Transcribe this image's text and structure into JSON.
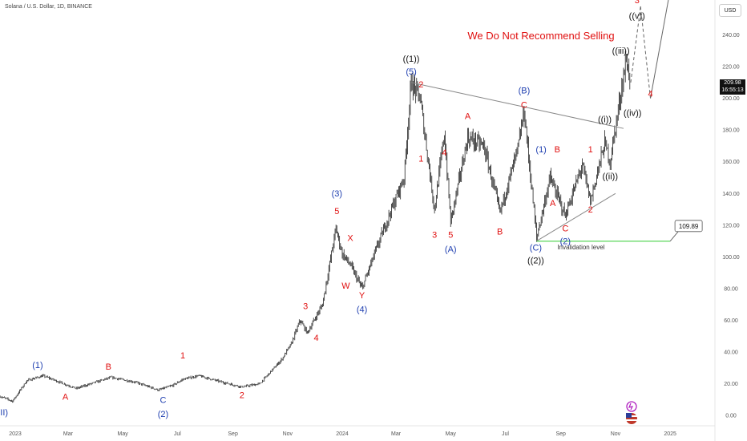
{
  "header": {
    "title": "Solana / U.S. Dollar, 1D, BINANCE",
    "currency_button": "USD"
  },
  "price_tag": {
    "price": "209.98",
    "countdown": "16:55:13"
  },
  "colors": {
    "candle": "#222222",
    "wave_red": "#e01010",
    "wave_blue": "#1f3fb0",
    "wave_black": "#111111",
    "trendline": "#888888",
    "invalidation": "#33cc33",
    "axis_text": "#555555"
  },
  "chart_data": {
    "type": "candlestick",
    "title": "We Do Not Recommend Selling",
    "y_axis": {
      "range": [
        -6,
        262
      ],
      "ticks": [
        "0.00",
        "20.00",
        "40.00",
        "60.00",
        "80.00",
        "100.00",
        "120.00",
        "140.00",
        "160.00",
        "180.00",
        "200.00",
        "220.00",
        "240.00"
      ]
    },
    "x_axis": {
      "range": [
        "2022-12-15",
        "2025-02-20"
      ],
      "ticks": [
        {
          "date": "2023-01-01",
          "label": "2023"
        },
        {
          "date": "2023-03-01",
          "label": "Mar"
        },
        {
          "date": "2023-05-01",
          "label": "May"
        },
        {
          "date": "2023-07-01",
          "label": "Jul"
        },
        {
          "date": "2023-09-01",
          "label": "Sep"
        },
        {
          "date": "2023-11-01",
          "label": "Nov"
        },
        {
          "date": "2024-01-01",
          "label": "2024"
        },
        {
          "date": "2024-03-01",
          "label": "Mar"
        },
        {
          "date": "2024-05-01",
          "label": "May"
        },
        {
          "date": "2024-07-01",
          "label": "Jul"
        },
        {
          "date": "2024-09-01",
          "label": "Sep"
        },
        {
          "date": "2024-11-01",
          "label": "Nov"
        },
        {
          "date": "2025-01-01",
          "label": "2025"
        }
      ]
    },
    "price_path": [
      [
        "2022-12-15",
        12
      ],
      [
        "2022-12-29",
        9
      ],
      [
        "2023-01-14",
        22
      ],
      [
        "2023-02-01",
        25
      ],
      [
        "2023-02-15",
        22
      ],
      [
        "2023-03-10",
        17
      ],
      [
        "2023-04-01",
        21
      ],
      [
        "2023-04-18",
        24
      ],
      [
        "2023-05-15",
        21
      ],
      [
        "2023-06-10",
        16
      ],
      [
        "2023-06-26",
        19
      ],
      [
        "2023-07-08",
        23
      ],
      [
        "2023-07-25",
        25
      ],
      [
        "2023-08-20",
        21
      ],
      [
        "2023-09-11",
        18
      ],
      [
        "2023-10-01",
        20
      ],
      [
        "2023-10-25",
        35
      ],
      [
        "2023-11-05",
        45
      ],
      [
        "2023-11-15",
        60
      ],
      [
        "2023-11-23",
        52
      ],
      [
        "2023-12-10",
        70
      ],
      [
        "2023-12-25",
        118
      ],
      [
        "2024-01-01",
        102
      ],
      [
        "2024-01-10",
        95
      ],
      [
        "2024-01-23",
        80
      ],
      [
        "2024-02-10",
        108
      ],
      [
        "2024-02-25",
        130
      ],
      [
        "2024-03-10",
        150
      ],
      [
        "2024-03-18",
        210
      ],
      [
        "2024-03-28",
        200
      ],
      [
        "2024-04-13",
        130
      ],
      [
        "2024-04-24",
        178
      ],
      [
        "2024-05-01",
        122
      ],
      [
        "2024-05-20",
        175
      ],
      [
        "2024-06-07",
        170
      ],
      [
        "2024-06-25",
        128
      ],
      [
        "2024-07-15",
        168
      ],
      [
        "2024-07-22",
        192
      ],
      [
        "2024-08-05",
        112
      ],
      [
        "2024-08-20",
        150
      ],
      [
        "2024-09-06",
        126
      ],
      [
        "2024-09-25",
        158
      ],
      [
        "2024-10-04",
        135
      ],
      [
        "2024-10-20",
        172
      ],
      [
        "2024-10-26",
        160
      ],
      [
        "2024-11-13",
        225
      ],
      [
        "2024-11-18",
        209.98
      ]
    ],
    "projection": [
      [
        "2024-11-18",
        209.98
      ],
      [
        "2024-11-29",
        258
      ],
      [
        "2024-12-10",
        200
      ],
      [
        "2024-12-31",
        265
      ]
    ],
    "trendlines": [
      {
        "name": "upper-triangle-line",
        "from": [
          "2024-03-18",
          210
        ],
        "to": [
          "2024-11-10",
          181
        ]
      },
      {
        "name": "lower-triangle-line",
        "from": [
          "2024-08-05",
          110
        ],
        "to": [
          "2024-11-01",
          140
        ]
      }
    ],
    "invalidation": {
      "from": "2024-08-05",
      "to": "2025-01-01",
      "level": 109.89,
      "label": "Invalidation level",
      "value_label": "109.89"
    },
    "wave_labels": [
      {
        "text": "(II)",
        "date": "2022-12-18",
        "price": 0,
        "color": "wave_blue"
      },
      {
        "text": "(1)",
        "date": "2023-01-26",
        "price": 30,
        "color": "wave_blue"
      },
      {
        "text": "A",
        "date": "2023-02-26",
        "price": 10,
        "color": "wave_red"
      },
      {
        "text": "B",
        "date": "2023-04-15",
        "price": 29,
        "color": "wave_red"
      },
      {
        "text": "C",
        "date": "2023-06-15",
        "price": 8,
        "color": "wave_blue"
      },
      {
        "text": "(2)",
        "date": "2023-06-15",
        "price": -1,
        "color": "wave_blue"
      },
      {
        "text": "1",
        "date": "2023-07-07",
        "price": 36,
        "color": "wave_red"
      },
      {
        "text": "2",
        "date": "2023-09-11",
        "price": 11,
        "color": "wave_red"
      },
      {
        "text": "3",
        "date": "2023-11-21",
        "price": 67,
        "color": "wave_red"
      },
      {
        "text": "4",
        "date": "2023-12-03",
        "price": 47,
        "color": "wave_red"
      },
      {
        "text": "(3)",
        "date": "2023-12-26",
        "price": 138,
        "color": "wave_blue"
      },
      {
        "text": "5",
        "date": "2023-12-26",
        "price": 127,
        "color": "wave_red"
      },
      {
        "text": "X",
        "date": "2024-01-10",
        "price": 110,
        "color": "wave_red"
      },
      {
        "text": "W",
        "date": "2024-01-05",
        "price": 80,
        "color": "wave_red"
      },
      {
        "text": "Y",
        "date": "2024-01-23",
        "price": 74,
        "color": "wave_red"
      },
      {
        "text": "(4)",
        "date": "2024-01-23",
        "price": 65,
        "color": "wave_blue"
      },
      {
        "text": "((1))",
        "date": "2024-03-18",
        "price": 223,
        "color": "wave_black"
      },
      {
        "text": "(5)",
        "date": "2024-03-18",
        "price": 215,
        "color": "wave_blue"
      },
      {
        "text": "2",
        "date": "2024-03-29",
        "price": 207,
        "color": "wave_red"
      },
      {
        "text": "1",
        "date": "2024-03-29",
        "price": 160,
        "color": "wave_red"
      },
      {
        "text": "4",
        "date": "2024-04-24",
        "price": 164,
        "color": "wave_red"
      },
      {
        "text": "3",
        "date": "2024-04-13",
        "price": 112,
        "color": "wave_red"
      },
      {
        "text": "5",
        "date": "2024-05-01",
        "price": 112,
        "color": "wave_red"
      },
      {
        "text": "(A)",
        "date": "2024-05-01",
        "price": 103,
        "color": "wave_blue"
      },
      {
        "text": "A",
        "date": "2024-05-20",
        "price": 187,
        "color": "wave_red"
      },
      {
        "text": "B",
        "date": "2024-06-25",
        "price": 114,
        "color": "wave_red"
      },
      {
        "text": "(B)",
        "date": "2024-07-22",
        "price": 203,
        "color": "wave_blue"
      },
      {
        "text": "C",
        "date": "2024-07-22",
        "price": 194,
        "color": "wave_red"
      },
      {
        "text": "(1)",
        "date": "2024-08-10",
        "price": 166,
        "color": "wave_blue"
      },
      {
        "text": "B",
        "date": "2024-08-28",
        "price": 166,
        "color": "wave_red"
      },
      {
        "text": "A",
        "date": "2024-08-23",
        "price": 132,
        "color": "wave_red"
      },
      {
        "text": "1",
        "date": "2024-10-04",
        "price": 166,
        "color": "wave_red"
      },
      {
        "text": "2",
        "date": "2024-10-04",
        "price": 128,
        "color": "wave_red"
      },
      {
        "text": "C",
        "date": "2024-09-06",
        "price": 116,
        "color": "wave_red"
      },
      {
        "text": "(2)",
        "date": "2024-09-06",
        "price": 108,
        "color": "wave_blue"
      },
      {
        "text": "(C)",
        "date": "2024-08-04",
        "price": 104,
        "color": "wave_blue"
      },
      {
        "text": "((2))",
        "date": "2024-08-04",
        "price": 96,
        "color": "wave_black"
      },
      {
        "text": "((i))",
        "date": "2024-10-20",
        "price": 185,
        "color": "wave_black"
      },
      {
        "text": "((ii))",
        "date": "2024-10-26",
        "price": 149,
        "color": "wave_black"
      },
      {
        "text": "((iii))",
        "date": "2024-11-07",
        "price": 228,
        "color": "wave_black"
      },
      {
        "text": "((iv))",
        "date": "2024-11-20",
        "price": 189,
        "color": "wave_black"
      },
      {
        "text": "((v))",
        "date": "2024-11-25",
        "price": 250,
        "color": "wave_black"
      },
      {
        "text": "3",
        "date": "2024-11-25",
        "price": 260,
        "color": "wave_red"
      },
      {
        "text": "4",
        "date": "2024-12-10",
        "price": 201,
        "color": "wave_red"
      }
    ]
  }
}
